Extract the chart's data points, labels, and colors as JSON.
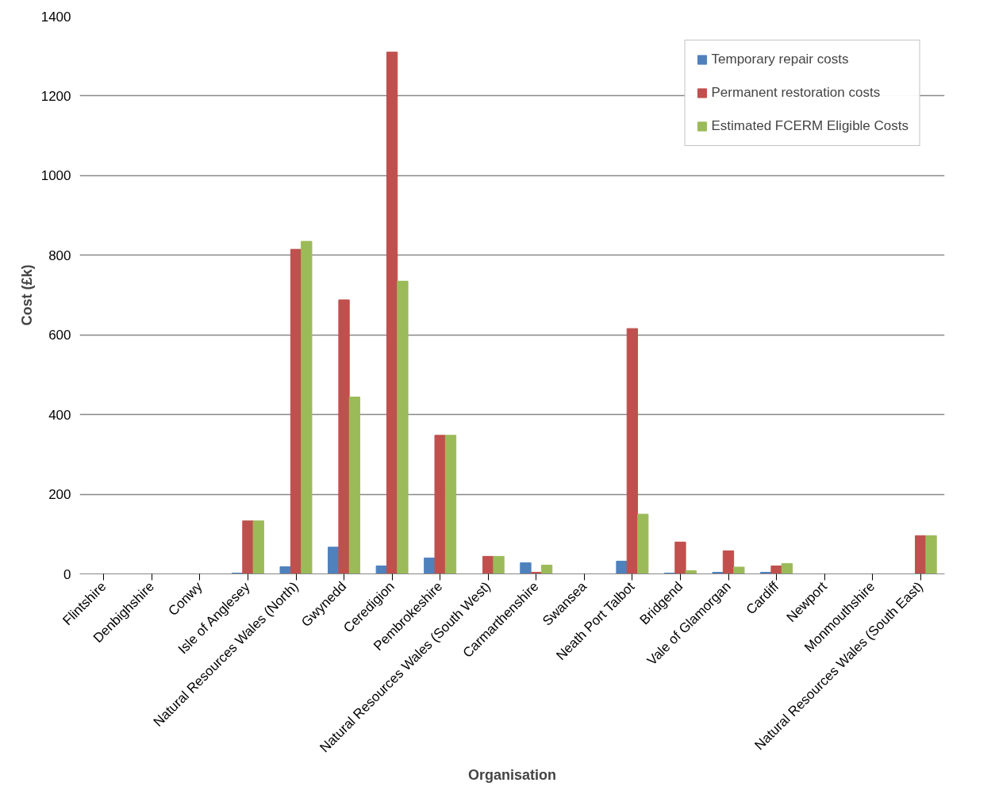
{
  "chart_data": {
    "type": "bar",
    "xlabel": "Organisation",
    "ylabel": "Cost (£k)",
    "categories": [
      "Flintshire",
      "Denbighshire",
      "Conwy",
      "Isle of Anglesey",
      "Natural Resources Wales (North)",
      "Gwynedd",
      "Ceredigion",
      "Pembrokeshire",
      "Natural Resources Wales (South West)",
      "Carmarthenshire",
      "Swansea",
      "Neath Port Talbot",
      "Bridgend",
      "Vale of Glamorgan",
      "Cardiff",
      "Newport",
      "Monmouthshire",
      "Natural Resources Wales (South East)"
    ],
    "series": [
      {
        "name": "Temporary repair costs",
        "color": "#4f81bd",
        "values": [
          0,
          0,
          0,
          2,
          18,
          67,
          20,
          40,
          0,
          28,
          0,
          32,
          2,
          4,
          4,
          0,
          0,
          0
        ]
      },
      {
        "name": "Permanent restoration costs",
        "color": "#c0504d",
        "values": [
          0,
          0,
          0,
          133,
          815,
          688,
          1310,
          348,
          44,
          4,
          0,
          616,
          80,
          58,
          20,
          0,
          0,
          96
        ]
      },
      {
        "name": "Estimated FCERM Eligible Costs",
        "color": "#9bbb59",
        "values": [
          0,
          0,
          0,
          133,
          835,
          444,
          735,
          348,
          44,
          22,
          0,
          150,
          8,
          17,
          26,
          0,
          0,
          96
        ]
      }
    ],
    "ylim": [
      0,
      1400
    ],
    "yticks": [
      0,
      200,
      400,
      600,
      800,
      1000,
      1200,
      1400
    ],
    "grid": "y",
    "legend": "top right"
  }
}
